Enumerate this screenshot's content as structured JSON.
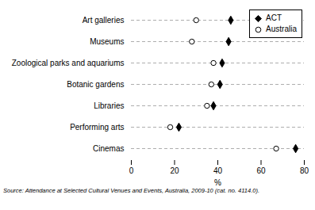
{
  "chart_data": {
    "type": "dot",
    "orientation": "horizontal",
    "categories": [
      "Art galleries",
      "Museums",
      "Zoological parks and aquariums",
      "Botanic gardens",
      "Libraries",
      "Performing arts",
      "Cinemas"
    ],
    "series": [
      {
        "name": "ACT",
        "color": "#000000",
        "marker": "diamond",
        "values": [
          46,
          45,
          42,
          41,
          38,
          22,
          76
        ]
      },
      {
        "name": "Australia",
        "color": "#000000",
        "marker": "circle",
        "values": [
          30,
          28,
          38,
          37,
          35,
          18,
          67
        ]
      }
    ],
    "xlabel": "%",
    "xlim": [
      0,
      80
    ],
    "xticks": [
      0,
      20,
      40,
      60,
      80
    ],
    "grid": true,
    "legend": "upper right",
    "annotations": [
      "Source: Attendance at Selected Cultural Venues and Events, Australia, 2009-10 (cat. no. 4114.0)."
    ]
  }
}
